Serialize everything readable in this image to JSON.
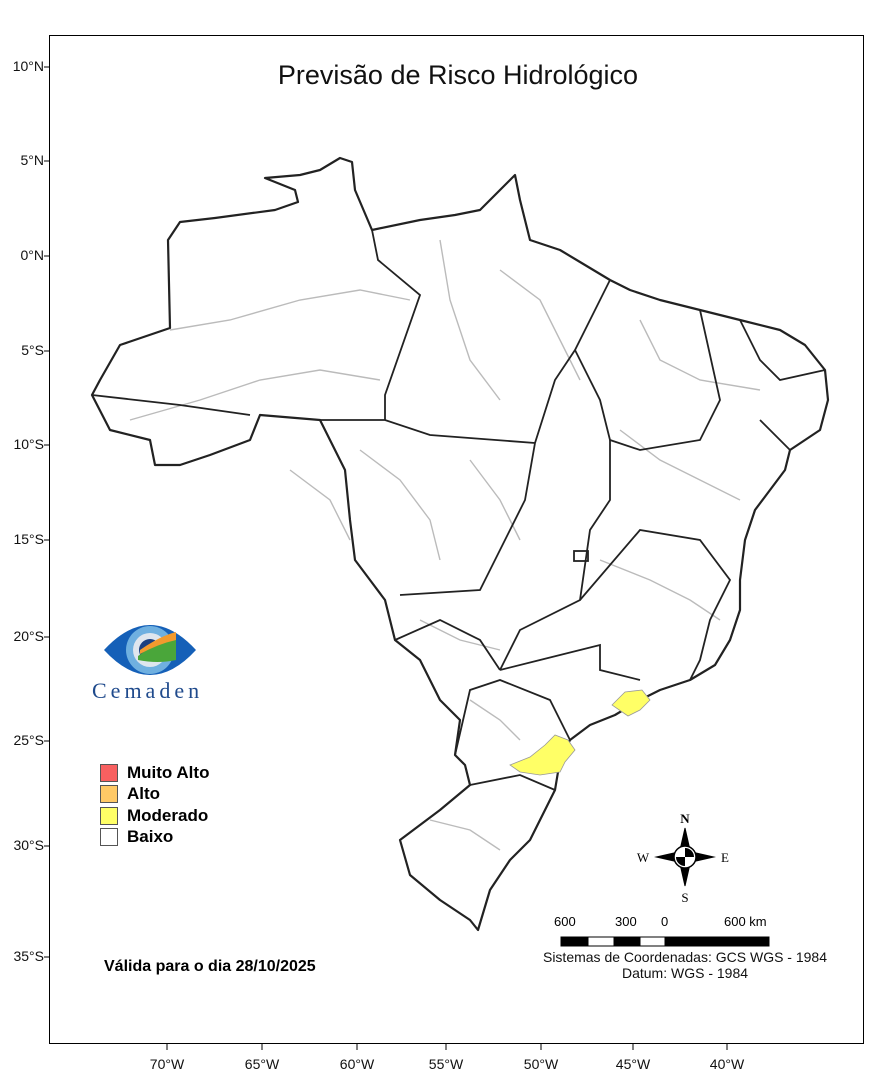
{
  "title": "Previsão de Risco Hidrológico",
  "latitude_labels": [
    "10°N",
    "5°N",
    "0°N",
    "5°S",
    "10°S",
    "15°S",
    "20°S",
    "25°S",
    "30°S",
    "35°S"
  ],
  "longitude_labels": [
    "70°W",
    "65°W",
    "60°W",
    "55°W",
    "50°W",
    "45°W",
    "40°W"
  ],
  "logo": {
    "text": "Cemaden"
  },
  "legend": [
    {
      "label": "Muito Alto",
      "color": "#f86060"
    },
    {
      "label": "Alto",
      "color": "#ffc966"
    },
    {
      "label": "Moderado",
      "color": "#ffff66"
    },
    {
      "label": "Baixo",
      "color": "#ffffff"
    }
  ],
  "risk_areas": [
    {
      "level": "Moderado",
      "region": "litoral de São Paulo"
    },
    {
      "level": "Moderado",
      "region": "leste do Paraná / norte de Santa Catarina"
    }
  ],
  "validity": "Válida para o dia 28/10/2025",
  "compass": {
    "n": "N",
    "s": "S",
    "e": "E",
    "w": "W"
  },
  "scale_bar": {
    "labels": [
      "600",
      "300",
      "0",
      "600 km"
    ]
  },
  "coordinate_system": "Sistemas de Coordenadas: GCS WGS - 1984",
  "datum": "Datum: WGS - 1984"
}
